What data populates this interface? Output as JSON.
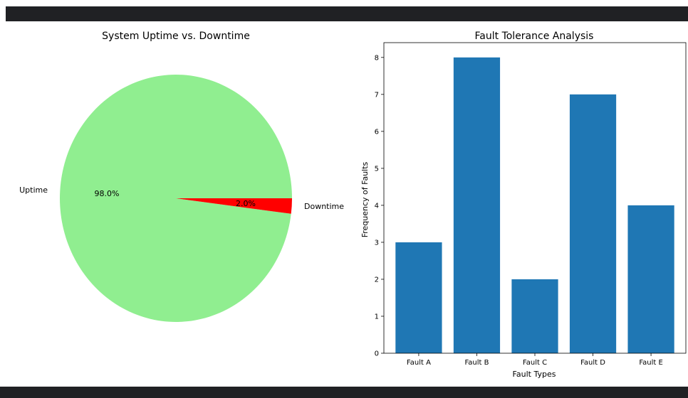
{
  "colors": {
    "frame": "#202124",
    "uptime": "#90ee90",
    "downtime": "#ff0000",
    "bar": "#1f77b4"
  },
  "chart_data": [
    {
      "type": "pie",
      "title": "System Uptime vs. Downtime",
      "labels": [
        "Uptime",
        "Downtime"
      ],
      "values": [
        98,
        2
      ],
      "autopct": [
        "98.0%",
        "2.0%"
      ],
      "colors": [
        "#90ee90",
        "#ff0000"
      ]
    },
    {
      "type": "bar",
      "title": "Fault Tolerance Analysis",
      "categories": [
        "Fault A",
        "Fault B",
        "Fault C",
        "Fault D",
        "Fault E"
      ],
      "values": [
        3,
        8,
        2,
        7,
        4
      ],
      "xlabel": "Fault Types",
      "ylabel": "Frequency of Faults",
      "ylim": [
        0,
        8.4
      ],
      "yticks": [
        "0",
        "1",
        "2",
        "3",
        "4",
        "5",
        "6",
        "7",
        "8"
      ],
      "color": "#1f77b4",
      "grid": false
    }
  ]
}
